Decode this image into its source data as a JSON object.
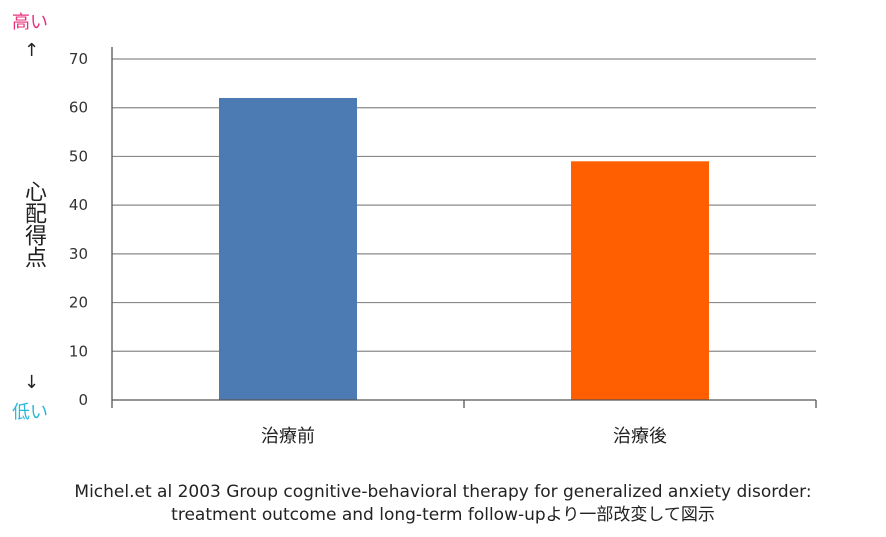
{
  "chart_data": {
    "type": "bar",
    "categories": [
      "治療前",
      "治療後"
    ],
    "values": [
      62,
      49
    ],
    "colors": [
      "#4c7bb3",
      "#ff5f00"
    ],
    "ylabel": "心配得点",
    "ylim": [
      0,
      70
    ],
    "yticks": [
      0,
      10,
      20,
      30,
      40,
      50,
      60,
      70
    ],
    "grid": true,
    "high_label": "高い",
    "low_label": "低い",
    "arrow_up": "↑",
    "arrow_down": "↓"
  },
  "caption": {
    "line1": "Michel.et al 2003 Group cognitive-behavioral therapy for generalized anxiety disorder:",
    "line2": "treatment outcome and long-term follow-upより一部改変して図示"
  }
}
